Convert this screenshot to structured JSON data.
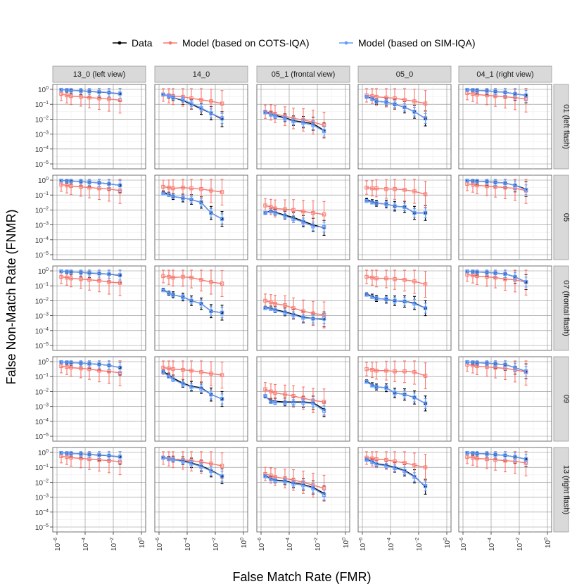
{
  "chart_data": {
    "type": "line",
    "xlabel": "False Match Rate (FMR)",
    "ylabel": "False Non-Match Rate (FNMR)",
    "x_scale": "log10",
    "y_scale": "log10",
    "xlim_exp": [
      -6,
      0
    ],
    "ylim_exp": [
      -5,
      0
    ],
    "x_tick_exps": [
      -6,
      -4,
      -2,
      0
    ],
    "y_tick_exps": [
      -5,
      -4,
      -3,
      -2,
      -1,
      0
    ],
    "tick_base": "10",
    "x_fmr": [
      2e-06,
      5e-06,
      1e-05,
      5e-05,
      0.0002,
      0.001,
      0.005,
      0.03
    ],
    "colors": {
      "Data": "#000000",
      "Model (based on COTS-IQA)": "#F8766D",
      "Model (based on SIM-IQA)": "#619CFF",
      "strip_bg": "#D9D9D9",
      "grid_major": "#E6E6E6"
    },
    "legend": [
      {
        "name": "Data",
        "color": "#000000"
      },
      {
        "name": "Model (based on COTS-IQA)",
        "color": "#F8766D"
      },
      {
        "name": "Model (based on SIM-IQA)",
        "color": "#619CFF"
      }
    ],
    "columns": [
      "13_0 (left view)",
      "14_0",
      "05_1 (frontal view)",
      "05_0",
      "04_1 (right view)"
    ],
    "rows": [
      "01 (left flash)",
      "05",
      "07 (frontal flash)",
      "09",
      "13 (right flash)"
    ],
    "panels": [
      [
        {
          "data": [
            -0.02,
            -0.05,
            -0.07,
            -0.1,
            -0.14,
            -0.18,
            -0.22,
            -0.3
          ],
          "cots": [
            -0.3,
            -0.4,
            -0.45,
            -0.5,
            -0.55,
            -0.6,
            -0.65,
            -0.72
          ],
          "sim": [
            -0.03,
            -0.05,
            -0.07,
            -0.1,
            -0.13,
            -0.17,
            -0.21,
            -0.28
          ]
        },
        {
          "data": [
            -0.35,
            -0.45,
            -0.55,
            -0.75,
            -1.0,
            -1.3,
            -1.6,
            -2.0
          ],
          "cots": [
            -0.35,
            -0.4,
            -0.45,
            -0.5,
            -0.6,
            -0.7,
            -0.8,
            -0.95
          ],
          "sim": [
            -0.35,
            -0.45,
            -0.55,
            -0.7,
            -0.95,
            -1.25,
            -1.6,
            -1.95
          ]
        },
        {
          "data": [
            -1.5,
            -1.65,
            -1.75,
            -1.9,
            -2.1,
            -2.2,
            -2.3,
            -2.75
          ],
          "cots": [
            -1.5,
            -1.55,
            -1.65,
            -1.8,
            -1.95,
            -2.05,
            -2.2,
            -2.4
          ],
          "sim": [
            -1.55,
            -1.7,
            -1.8,
            -1.95,
            -2.15,
            -2.25,
            -2.4,
            -2.8
          ]
        },
        {
          "data": [
            -0.5,
            -0.6,
            -0.8,
            -0.85,
            -1.0,
            -1.2,
            -1.5,
            -1.95
          ],
          "cots": [
            -0.4,
            -0.45,
            -0.5,
            -0.55,
            -0.6,
            -0.7,
            -0.8,
            -0.95
          ],
          "sim": [
            -0.5,
            -0.65,
            -0.8,
            -0.85,
            -1.0,
            -1.2,
            -1.5,
            -1.95
          ]
        },
        {
          "data": [
            -0.02,
            -0.05,
            -0.08,
            -0.1,
            -0.15,
            -0.2,
            -0.3,
            -0.4
          ],
          "cots": [
            -0.25,
            -0.3,
            -0.35,
            -0.4,
            -0.45,
            -0.5,
            -0.55,
            -0.65
          ],
          "sim": [
            -0.03,
            -0.05,
            -0.08,
            -0.1,
            -0.15,
            -0.2,
            -0.3,
            -0.4
          ]
        }
      ],
      [
        {
          "data": [
            -0.02,
            -0.05,
            -0.07,
            -0.1,
            -0.14,
            -0.18,
            -0.25,
            -0.35
          ],
          "cots": [
            -0.3,
            -0.35,
            -0.4,
            -0.45,
            -0.5,
            -0.55,
            -0.6,
            -0.7
          ],
          "sim": [
            -0.03,
            -0.05,
            -0.07,
            -0.1,
            -0.14,
            -0.18,
            -0.25,
            -0.35
          ]
        },
        {
          "data": [
            -0.8,
            -0.95,
            -1.1,
            -1.2,
            -1.3,
            -1.5,
            -2.2,
            -2.6
          ],
          "cots": [
            -0.45,
            -0.5,
            -0.55,
            -0.5,
            -0.55,
            -0.6,
            -0.7,
            -0.8
          ],
          "sim": [
            -0.9,
            -1.0,
            -1.1,
            -1.2,
            -1.3,
            -1.5,
            -2.2,
            -2.6
          ]
        },
        {
          "data": [
            -2.2,
            -2.05,
            -2.15,
            -2.35,
            -2.5,
            -2.75,
            -3.0,
            -3.2
          ],
          "cots": [
            -1.7,
            -1.8,
            -1.9,
            -1.95,
            -2.0,
            -2.1,
            -2.2,
            -2.3
          ],
          "sim": [
            -2.2,
            -2.1,
            -2.2,
            -2.4,
            -2.6,
            -2.8,
            -3.1,
            -3.15
          ]
        },
        {
          "data": [
            -1.3,
            -1.45,
            -1.55,
            -1.6,
            -1.75,
            -1.8,
            -2.2,
            -2.2
          ],
          "cots": [
            -0.5,
            -0.55,
            -0.55,
            -0.6,
            -0.6,
            -0.65,
            -0.75,
            -0.95
          ],
          "sim": [
            -1.4,
            -1.5,
            -1.55,
            -1.6,
            -1.75,
            -1.8,
            -2.2,
            -2.2
          ]
        },
        {
          "data": [
            -0.02,
            -0.05,
            -0.08,
            -0.1,
            -0.15,
            -0.2,
            -0.35,
            -0.6
          ],
          "cots": [
            -0.25,
            -0.3,
            -0.35,
            -0.4,
            -0.45,
            -0.5,
            -0.55,
            -0.7
          ],
          "sim": [
            -0.03,
            -0.05,
            -0.08,
            -0.1,
            -0.15,
            -0.2,
            -0.35,
            -0.65
          ]
        }
      ],
      [
        {
          "data": [
            -0.02,
            -0.05,
            -0.07,
            -0.1,
            -0.14,
            -0.18,
            -0.22,
            -0.3
          ],
          "cots": [
            -0.4,
            -0.45,
            -0.5,
            -0.55,
            -0.6,
            -0.65,
            -0.75,
            -0.8
          ],
          "sim": [
            -0.03,
            -0.05,
            -0.07,
            -0.1,
            -0.13,
            -0.17,
            -0.21,
            -0.28
          ]
        },
        {
          "data": [
            -1.25,
            -1.5,
            -1.6,
            -1.75,
            -2.0,
            -2.2,
            -2.7,
            -2.8
          ],
          "cots": [
            -0.35,
            -0.4,
            -0.45,
            -0.4,
            -0.45,
            -0.6,
            -0.75,
            -0.85
          ],
          "sim": [
            -1.3,
            -1.5,
            -1.6,
            -1.75,
            -2.0,
            -2.2,
            -2.7,
            -2.8
          ]
        },
        {
          "data": [
            -2.45,
            -2.5,
            -2.6,
            -2.75,
            -2.9,
            -3.1,
            -3.2,
            -3.25
          ],
          "cots": [
            -2.0,
            -2.1,
            -2.2,
            -2.3,
            -2.5,
            -2.7,
            -2.85,
            -2.95
          ],
          "sim": [
            -2.5,
            -2.55,
            -2.65,
            -2.8,
            -2.95,
            -3.15,
            -3.2,
            -3.2
          ]
        },
        {
          "data": [
            -1.55,
            -1.7,
            -1.85,
            -1.9,
            -2.0,
            -2.05,
            -2.15,
            -2.5
          ],
          "cots": [
            -0.4,
            -0.45,
            -0.5,
            -0.5,
            -0.55,
            -0.6,
            -0.7,
            -0.9
          ],
          "sim": [
            -1.6,
            -1.75,
            -1.85,
            -1.9,
            -2.0,
            -2.05,
            -2.2,
            -2.5
          ]
        },
        {
          "data": [
            -0.02,
            -0.05,
            -0.08,
            -0.1,
            -0.15,
            -0.2,
            -0.4,
            -0.75
          ],
          "cots": [
            -0.25,
            -0.3,
            -0.35,
            -0.4,
            -0.45,
            -0.55,
            -0.6,
            -0.75
          ],
          "sim": [
            -0.03,
            -0.05,
            -0.08,
            -0.1,
            -0.15,
            -0.2,
            -0.4,
            -0.75
          ]
        }
      ],
      [
        {
          "data": [
            -0.02,
            -0.05,
            -0.07,
            -0.1,
            -0.14,
            -0.18,
            -0.25,
            -0.4
          ],
          "cots": [
            -0.3,
            -0.35,
            -0.4,
            -0.45,
            -0.5,
            -0.6,
            -0.65,
            -0.75
          ],
          "sim": [
            -0.03,
            -0.05,
            -0.07,
            -0.1,
            -0.14,
            -0.18,
            -0.25,
            -0.4
          ]
        },
        {
          "data": [
            -0.65,
            -0.9,
            -1.1,
            -1.45,
            -1.65,
            -1.75,
            -2.2,
            -2.5
          ],
          "cots": [
            -0.4,
            -0.45,
            -0.5,
            -0.55,
            -0.6,
            -0.7,
            -0.8,
            -0.9
          ],
          "sim": [
            -0.7,
            -1.0,
            -1.2,
            -1.5,
            -1.7,
            -1.8,
            -2.2,
            -2.5
          ]
        },
        {
          "data": [
            -2.35,
            -2.6,
            -2.65,
            -2.7,
            -2.7,
            -2.7,
            -2.75,
            -3.2
          ],
          "cots": [
            -1.85,
            -2.0,
            -2.1,
            -2.2,
            -2.3,
            -2.45,
            -2.6,
            -2.7
          ],
          "sim": [
            -2.3,
            -2.7,
            -2.75,
            -2.75,
            -2.75,
            -2.75,
            -2.8,
            -3.3
          ]
        },
        {
          "data": [
            -1.3,
            -1.55,
            -1.7,
            -1.75,
            -2.1,
            -2.2,
            -2.4,
            -2.8
          ],
          "cots": [
            -0.5,
            -0.55,
            -0.6,
            -0.6,
            -0.65,
            -0.65,
            -0.7,
            -0.95
          ],
          "sim": [
            -1.35,
            -1.6,
            -1.7,
            -1.75,
            -2.1,
            -2.2,
            -2.4,
            -2.8
          ]
        },
        {
          "data": [
            -0.02,
            -0.05,
            -0.08,
            -0.1,
            -0.15,
            -0.2,
            -0.4,
            -0.65
          ],
          "cots": [
            -0.2,
            -0.25,
            -0.3,
            -0.35,
            -0.4,
            -0.45,
            -0.55,
            -0.7
          ],
          "sim": [
            -0.03,
            -0.05,
            -0.08,
            -0.1,
            -0.15,
            -0.2,
            -0.4,
            -0.65
          ]
        }
      ],
      [
        {
          "data": [
            -0.02,
            -0.05,
            -0.07,
            -0.1,
            -0.14,
            -0.18,
            -0.22,
            -0.3
          ],
          "cots": [
            -0.25,
            -0.3,
            -0.35,
            -0.4,
            -0.45,
            -0.5,
            -0.55,
            -0.62
          ],
          "sim": [
            -0.03,
            -0.05,
            -0.07,
            -0.1,
            -0.13,
            -0.17,
            -0.21,
            -0.28
          ]
        },
        {
          "data": [
            -0.35,
            -0.4,
            -0.45,
            -0.55,
            -0.7,
            -0.9,
            -1.2,
            -1.6
          ],
          "cots": [
            -0.35,
            -0.4,
            -0.45,
            -0.5,
            -0.55,
            -0.65,
            -0.75,
            -0.9
          ],
          "sim": [
            -0.35,
            -0.45,
            -0.5,
            -0.6,
            -0.75,
            -0.95,
            -1.25,
            -1.6
          ]
        },
        {
          "data": [
            -1.55,
            -1.75,
            -1.85,
            -1.9,
            -2.05,
            -2.15,
            -2.35,
            -2.75
          ],
          "cots": [
            -1.45,
            -1.55,
            -1.65,
            -1.75,
            -1.85,
            -2.0,
            -2.2,
            -2.4
          ],
          "sim": [
            -1.6,
            -1.8,
            -1.9,
            -1.95,
            -2.1,
            -2.2,
            -2.4,
            -2.85
          ]
        },
        {
          "data": [
            -0.45,
            -0.6,
            -0.75,
            -0.85,
            -1.0,
            -1.2,
            -1.6,
            -2.3
          ],
          "cots": [
            -0.35,
            -0.4,
            -0.45,
            -0.5,
            -0.6,
            -0.7,
            -0.85,
            -1.0
          ],
          "sim": [
            -0.5,
            -0.65,
            -0.8,
            -0.9,
            -1.05,
            -1.25,
            -1.65,
            -2.25
          ]
        },
        {
          "data": [
            -0.02,
            -0.05,
            -0.08,
            -0.1,
            -0.15,
            -0.2,
            -0.3,
            -0.45
          ],
          "cots": [
            -0.3,
            -0.35,
            -0.4,
            -0.45,
            -0.5,
            -0.55,
            -0.6,
            -0.7
          ],
          "sim": [
            -0.03,
            -0.05,
            -0.08,
            -0.1,
            -0.15,
            -0.2,
            -0.3,
            -0.45
          ]
        }
      ]
    ]
  }
}
